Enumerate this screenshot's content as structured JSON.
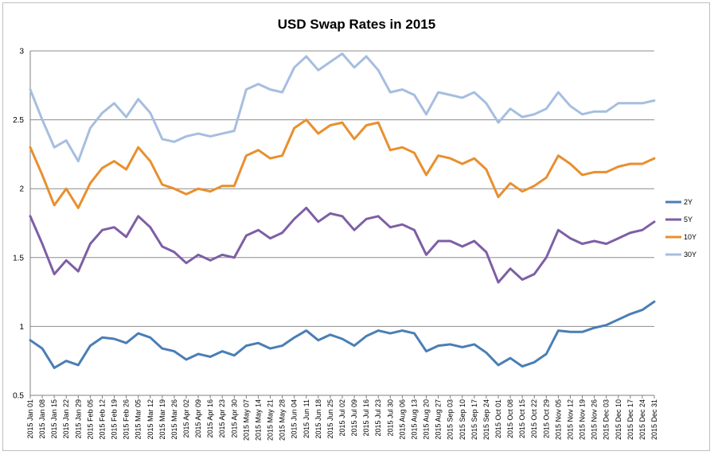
{
  "chart_data": {
    "type": "line",
    "title": "USD Swap Rates in 2015",
    "xlabel": "",
    "ylabel": "",
    "ylim": [
      0.5,
      3
    ],
    "yticks": [
      "0.5",
      "1",
      "1.5",
      "2",
      "2.5",
      "3"
    ],
    "grid": "horizontal",
    "legend_position": "right",
    "x_start": "2015-01-01",
    "x_end": "2015-12-31",
    "x_tick_labels": [
      "2015 Jan 01",
      "2015 Jan 08",
      "2015 Jan 15",
      "2015 Jan 22",
      "2015 Jan 29",
      "2015 Feb 05",
      "2015 Feb 12",
      "2015 Feb 19",
      "2015 Feb 26",
      "2015 Mar 05",
      "2015 Mar 12",
      "2015 Mar 19",
      "2015 Mar 26",
      "2015 Apr 02",
      "2015 Apr 09",
      "2015 Apr 16",
      "2015 Apr 23",
      "2015 Apr 30",
      "2015 May 07",
      "2015 May 14",
      "2015 May 21",
      "2015 May 28",
      "2015 Jun 04",
      "2015 Jun 11",
      "2015 Jun 18",
      "2015 Jun 25",
      "2015 Jul 02",
      "2015 Jul 09",
      "2015 Jul 16",
      "2015 Jul 23",
      "2015 Jul 30",
      "2015 Aug 06",
      "2015 Aug 13",
      "2015 Aug 20",
      "2015 Aug 27",
      "2015 Sep 03",
      "2015 Sep 10",
      "2015 Sep 17",
      "2015 Sep 24",
      "2015 Oct 01",
      "2015 Oct 08",
      "2015 Oct 15",
      "2015 Oct 22",
      "2015 Oct 29",
      "2015 Nov 05",
      "2015 Nov 12",
      "2015 Nov 19",
      "2015 Nov 26",
      "2015 Dec 03",
      "2015 Dec 10",
      "2015 Dec 17",
      "2015 Dec 24",
      "2015 Dec 31"
    ],
    "series": [
      {
        "name": "2Y",
        "color": "#4a7eb5",
        "x": [
          "2015-01-01",
          "2015-01-08",
          "2015-01-15",
          "2015-01-22",
          "2015-01-29",
          "2015-02-05",
          "2015-02-12",
          "2015-02-19",
          "2015-02-26",
          "2015-03-05",
          "2015-03-12",
          "2015-03-19",
          "2015-03-26",
          "2015-04-02",
          "2015-04-09",
          "2015-04-16",
          "2015-04-23",
          "2015-04-30",
          "2015-05-07",
          "2015-05-14",
          "2015-05-21",
          "2015-05-28",
          "2015-06-04",
          "2015-06-11",
          "2015-06-18",
          "2015-06-25",
          "2015-07-02",
          "2015-07-09",
          "2015-07-16",
          "2015-07-23",
          "2015-07-30",
          "2015-08-06",
          "2015-08-13",
          "2015-08-20",
          "2015-08-27",
          "2015-09-03",
          "2015-09-10",
          "2015-09-17",
          "2015-09-24",
          "2015-10-01",
          "2015-10-08",
          "2015-10-15",
          "2015-10-22",
          "2015-10-29",
          "2015-11-05",
          "2015-11-12",
          "2015-11-19",
          "2015-11-26",
          "2015-12-03",
          "2015-12-10",
          "2015-12-17",
          "2015-12-24",
          "2015-12-31"
        ],
        "values": [
          0.9,
          0.84,
          0.7,
          0.75,
          0.72,
          0.86,
          0.92,
          0.91,
          0.88,
          0.95,
          0.92,
          0.84,
          0.82,
          0.76,
          0.8,
          0.78,
          0.82,
          0.79,
          0.86,
          0.88,
          0.84,
          0.86,
          0.92,
          0.97,
          0.9,
          0.94,
          0.91,
          0.86,
          0.93,
          0.97,
          0.95,
          0.97,
          0.95,
          0.82,
          0.86,
          0.87,
          0.85,
          0.87,
          0.81,
          0.72,
          0.77,
          0.71,
          0.74,
          0.8,
          0.97,
          0.96,
          0.96,
          0.99,
          1.01,
          1.05,
          1.09,
          1.12,
          1.18
        ]
      },
      {
        "name": "5Y",
        "color": "#7e5ea5",
        "x": [
          "2015-01-01",
          "2015-01-08",
          "2015-01-15",
          "2015-01-22",
          "2015-01-29",
          "2015-02-05",
          "2015-02-12",
          "2015-02-19",
          "2015-02-26",
          "2015-03-05",
          "2015-03-12",
          "2015-03-19",
          "2015-03-26",
          "2015-04-02",
          "2015-04-09",
          "2015-04-16",
          "2015-04-23",
          "2015-04-30",
          "2015-05-07",
          "2015-05-14",
          "2015-05-21",
          "2015-05-28",
          "2015-06-04",
          "2015-06-11",
          "2015-06-18",
          "2015-06-25",
          "2015-07-02",
          "2015-07-09",
          "2015-07-16",
          "2015-07-23",
          "2015-07-30",
          "2015-08-06",
          "2015-08-13",
          "2015-08-20",
          "2015-08-27",
          "2015-09-03",
          "2015-09-10",
          "2015-09-17",
          "2015-09-24",
          "2015-10-01",
          "2015-10-08",
          "2015-10-15",
          "2015-10-22",
          "2015-10-29",
          "2015-11-05",
          "2015-11-12",
          "2015-11-19",
          "2015-11-26",
          "2015-12-03",
          "2015-12-10",
          "2015-12-17",
          "2015-12-24",
          "2015-12-31"
        ],
        "values": [
          1.8,
          1.6,
          1.38,
          1.48,
          1.4,
          1.6,
          1.7,
          1.72,
          1.65,
          1.8,
          1.72,
          1.58,
          1.54,
          1.46,
          1.52,
          1.48,
          1.52,
          1.5,
          1.66,
          1.7,
          1.64,
          1.68,
          1.78,
          1.86,
          1.76,
          1.82,
          1.8,
          1.7,
          1.78,
          1.8,
          1.72,
          1.74,
          1.7,
          1.52,
          1.62,
          1.62,
          1.58,
          1.62,
          1.54,
          1.32,
          1.42,
          1.34,
          1.38,
          1.5,
          1.7,
          1.64,
          1.6,
          1.62,
          1.6,
          1.64,
          1.68,
          1.7,
          1.76
        ]
      },
      {
        "name": "10Y",
        "color": "#e98f2e",
        "x": [
          "2015-01-01",
          "2015-01-08",
          "2015-01-15",
          "2015-01-22",
          "2015-01-29",
          "2015-02-05",
          "2015-02-12",
          "2015-02-19",
          "2015-02-26",
          "2015-03-05",
          "2015-03-12",
          "2015-03-19",
          "2015-03-26",
          "2015-04-02",
          "2015-04-09",
          "2015-04-16",
          "2015-04-23",
          "2015-04-30",
          "2015-05-07",
          "2015-05-14",
          "2015-05-21",
          "2015-05-28",
          "2015-06-04",
          "2015-06-11",
          "2015-06-18",
          "2015-06-25",
          "2015-07-02",
          "2015-07-09",
          "2015-07-16",
          "2015-07-23",
          "2015-07-30",
          "2015-08-06",
          "2015-08-13",
          "2015-08-20",
          "2015-08-27",
          "2015-09-03",
          "2015-09-10",
          "2015-09-17",
          "2015-09-24",
          "2015-10-01",
          "2015-10-08",
          "2015-10-15",
          "2015-10-22",
          "2015-10-29",
          "2015-11-05",
          "2015-11-12",
          "2015-11-19",
          "2015-11-26",
          "2015-12-03",
          "2015-12-10",
          "2015-12-17",
          "2015-12-24",
          "2015-12-31"
        ],
        "values": [
          2.3,
          2.1,
          1.88,
          2.0,
          1.86,
          2.04,
          2.15,
          2.2,
          2.14,
          2.3,
          2.2,
          2.03,
          2.0,
          1.96,
          2.0,
          1.98,
          2.02,
          2.02,
          2.24,
          2.28,
          2.22,
          2.24,
          2.44,
          2.5,
          2.4,
          2.46,
          2.48,
          2.36,
          2.46,
          2.48,
          2.28,
          2.3,
          2.26,
          2.1,
          2.24,
          2.22,
          2.18,
          2.22,
          2.14,
          1.94,
          2.04,
          1.98,
          2.02,
          2.08,
          2.24,
          2.18,
          2.1,
          2.12,
          2.12,
          2.16,
          2.18,
          2.18,
          2.22
        ]
      },
      {
        "name": "30Y",
        "color": "#a6bedf",
        "x": [
          "2015-01-01",
          "2015-01-08",
          "2015-01-15",
          "2015-01-22",
          "2015-01-29",
          "2015-02-05",
          "2015-02-12",
          "2015-02-19",
          "2015-02-26",
          "2015-03-05",
          "2015-03-12",
          "2015-03-19",
          "2015-03-26",
          "2015-04-02",
          "2015-04-09",
          "2015-04-16",
          "2015-04-23",
          "2015-04-30",
          "2015-05-07",
          "2015-05-14",
          "2015-05-21",
          "2015-05-28",
          "2015-06-04",
          "2015-06-11",
          "2015-06-18",
          "2015-06-25",
          "2015-07-02",
          "2015-07-09",
          "2015-07-16",
          "2015-07-23",
          "2015-07-30",
          "2015-08-06",
          "2015-08-13",
          "2015-08-20",
          "2015-08-27",
          "2015-09-03",
          "2015-09-10",
          "2015-09-17",
          "2015-09-24",
          "2015-10-01",
          "2015-10-08",
          "2015-10-15",
          "2015-10-22",
          "2015-10-29",
          "2015-11-05",
          "2015-11-12",
          "2015-11-19",
          "2015-11-26",
          "2015-12-03",
          "2015-12-10",
          "2015-12-17",
          "2015-12-24",
          "2015-12-31"
        ],
        "values": [
          2.72,
          2.5,
          2.3,
          2.35,
          2.2,
          2.44,
          2.55,
          2.62,
          2.52,
          2.65,
          2.55,
          2.36,
          2.34,
          2.38,
          2.4,
          2.38,
          2.4,
          2.42,
          2.72,
          2.76,
          2.72,
          2.7,
          2.88,
          2.96,
          2.86,
          2.92,
          2.98,
          2.88,
          2.96,
          2.86,
          2.7,
          2.72,
          2.68,
          2.54,
          2.7,
          2.68,
          2.66,
          2.7,
          2.62,
          2.48,
          2.58,
          2.52,
          2.54,
          2.58,
          2.7,
          2.6,
          2.54,
          2.56,
          2.56,
          2.62,
          2.62,
          2.62,
          2.64
        ]
      }
    ]
  }
}
